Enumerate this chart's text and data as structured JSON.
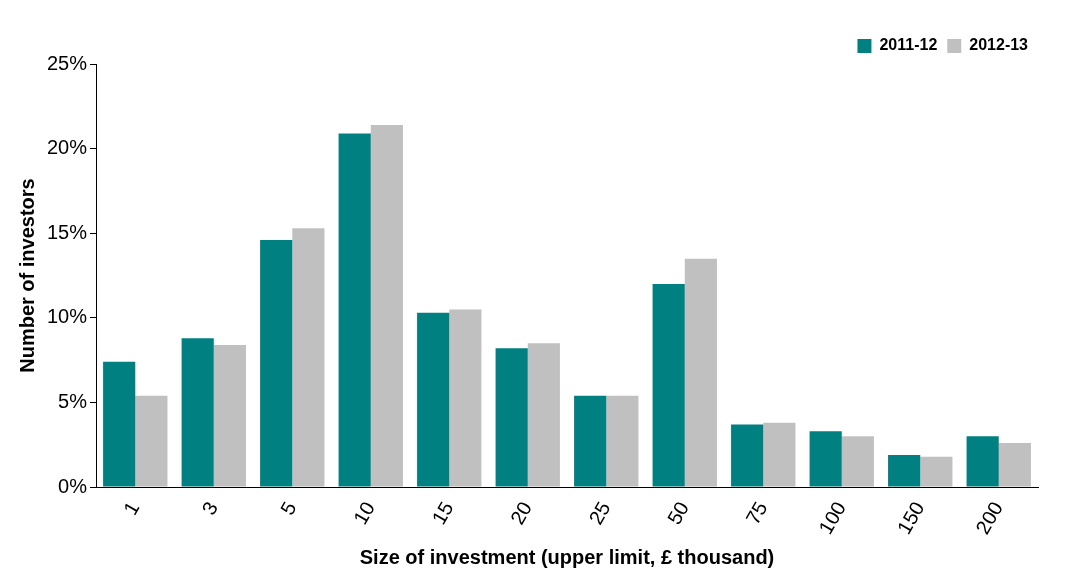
{
  "chart_data": {
    "type": "bar",
    "xlabel": "Size of investment (upper limit, £ thousand)",
    "ylabel": "Number of investors",
    "categories": [
      "1",
      "3",
      "5",
      "10",
      "15",
      "20",
      "25",
      "50",
      "75",
      "100",
      "150",
      "200"
    ],
    "series": [
      {
        "name": "2011-12",
        "color": "#008080",
        "values": [
          7.4,
          8.8,
          14.6,
          20.9,
          10.3,
          8.2,
          5.4,
          12.0,
          3.7,
          3.3,
          1.9,
          3.0
        ]
      },
      {
        "name": "2012-13",
        "color": "#c0c0c0",
        "values": [
          5.4,
          8.4,
          15.3,
          21.4,
          10.5,
          8.5,
          5.4,
          13.5,
          3.8,
          3.0,
          1.8,
          2.6
        ]
      }
    ],
    "ylim": [
      0,
      25
    ],
    "yticks": [
      {
        "value": 0,
        "label": "0%"
      },
      {
        "value": 5,
        "label": "5%"
      },
      {
        "value": 10,
        "label": "10%"
      },
      {
        "value": 15,
        "label": "15%"
      },
      {
        "value": 20,
        "label": "20%"
      },
      {
        "value": 25,
        "label": "25%"
      }
    ],
    "grid": false,
    "legend": "top right"
  }
}
